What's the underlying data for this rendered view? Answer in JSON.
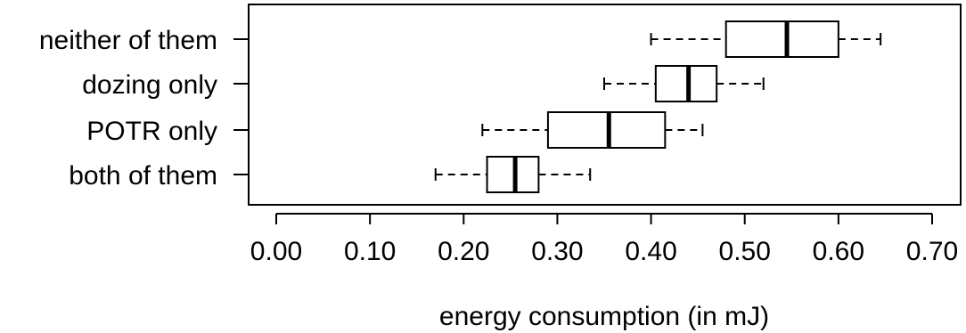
{
  "chart_data": {
    "type": "boxplot",
    "orientation": "horizontal",
    "title": "",
    "xlabel": "energy consumption (in mJ)",
    "ylabel": "",
    "xlim": [
      0.0,
      0.7
    ],
    "xticks": [
      0.0,
      0.1,
      0.2,
      0.3,
      0.4,
      0.5,
      0.6,
      0.7
    ],
    "xtick_labels": [
      "0.00",
      "0.10",
      "0.20",
      "0.30",
      "0.40",
      "0.50",
      "0.60",
      "0.70"
    ],
    "categories": [
      "neither of them",
      "dozing only",
      "POTR only",
      "both of them"
    ],
    "boxes": [
      {
        "label": "neither of them",
        "whisker_low": 0.4,
        "q1": 0.48,
        "median": 0.545,
        "q3": 0.6,
        "whisker_high": 0.645
      },
      {
        "label": "dozing only",
        "whisker_low": 0.35,
        "q1": 0.405,
        "median": 0.44,
        "q3": 0.47,
        "whisker_high": 0.52
      },
      {
        "label": "POTR only",
        "whisker_low": 0.22,
        "q1": 0.29,
        "median": 0.355,
        "q3": 0.415,
        "whisker_high": 0.455
      },
      {
        "label": "both of them",
        "whisker_low": 0.17,
        "q1": 0.225,
        "median": 0.255,
        "q3": 0.28,
        "whisker_high": 0.335
      }
    ],
    "grid": false,
    "legend": "none",
    "colors": {
      "box_fill": "#ffffff",
      "stroke": "#000000"
    }
  }
}
